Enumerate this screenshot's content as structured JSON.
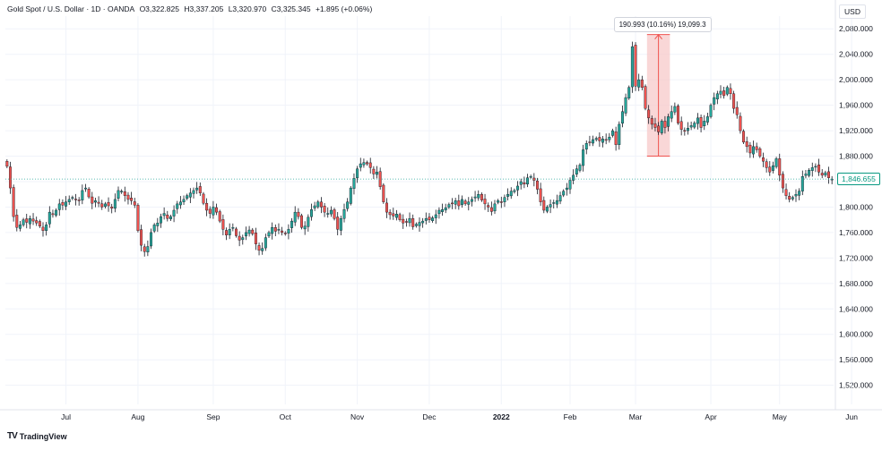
{
  "header": {
    "symbol": "Gold Spot / U.S. Dollar · 1D · OANDA",
    "open": "O3,322.825",
    "high": "H3,337.205",
    "low": "L3,320.970",
    "close": "C3,325.345",
    "change": "+1.895 (+0.06%)",
    "currency": "USD"
  },
  "measure": {
    "label": "190.993 (10.16%) 19,099.3"
  },
  "last_price": "1,846.655",
  "branding": {
    "logo_mark": "TV",
    "name": "TradingView"
  },
  "colors": {
    "up": "#26a69a",
    "down": "#ef5350",
    "measure_fill": "#f7c6c6",
    "measure_line": "#ef5350",
    "grid": "#f0f3fa"
  },
  "chart_data": {
    "type": "candlestick",
    "y_ticks": [
      "2,080.000",
      "2,040.000",
      "2,000.000",
      "1,960.000",
      "1,920.000",
      "1,880.000",
      "1,840.000",
      "1,800.000",
      "1,760.000",
      "1,720.000",
      "1,680.000",
      "1,640.000",
      "1,600.000",
      "1,560.000",
      "1,520.000"
    ],
    "y_tick_values": [
      2080,
      2040,
      2000,
      1960,
      1920,
      1880,
      1840,
      1800,
      1760,
      1720,
      1680,
      1640,
      1600,
      1560,
      1520
    ],
    "ylim": [
      1490,
      2100
    ],
    "x_labels": [
      {
        "label": "Jul",
        "day": 18
      },
      {
        "label": "Aug",
        "day": 40
      },
      {
        "label": "Sep",
        "day": 63
      },
      {
        "label": "Oct",
        "day": 85
      },
      {
        "label": "Nov",
        "day": 107
      },
      {
        "label": "Dec",
        "day": 129
      },
      {
        "label": "2022",
        "day": 151
      },
      {
        "label": "Feb",
        "day": 172
      },
      {
        "label": "Mar",
        "day": 192
      },
      {
        "label": "Apr",
        "day": 215
      },
      {
        "label": "May",
        "day": 236
      },
      {
        "label": "Jun",
        "day": 258
      }
    ],
    "series_closes": [
      1864,
      1830,
      1785,
      1768,
      1772,
      1780,
      1776,
      1782,
      1778,
      1775,
      1770,
      1763,
      1772,
      1792,
      1788,
      1795,
      1805,
      1803,
      1808,
      1812,
      1815,
      1812,
      1810,
      1826,
      1830,
      1816,
      1806,
      1810,
      1806,
      1800,
      1805,
      1802,
      1798,
      1812,
      1826,
      1825,
      1818,
      1812,
      1810,
      1803,
      1763,
      1740,
      1730,
      1738,
      1760,
      1772,
      1775,
      1785,
      1790,
      1782,
      1785,
      1795,
      1805,
      1808,
      1812,
      1818,
      1822,
      1826,
      1830,
      1822,
      1806,
      1795,
      1790,
      1800,
      1792,
      1778,
      1765,
      1756,
      1765,
      1768,
      1755,
      1748,
      1752,
      1760,
      1764,
      1758,
      1742,
      1732,
      1735,
      1752,
      1760,
      1768,
      1762,
      1765,
      1760,
      1758,
      1765,
      1778,
      1792,
      1785,
      1768,
      1770,
      1784,
      1796,
      1802,
      1808,
      1800,
      1792,
      1790,
      1795,
      1782,
      1765,
      1782,
      1796,
      1808,
      1830,
      1845,
      1860,
      1868,
      1870,
      1868,
      1862,
      1852,
      1855,
      1832,
      1808,
      1792,
      1788,
      1786,
      1789,
      1780,
      1775,
      1777,
      1782,
      1769,
      1773,
      1776,
      1778,
      1782,
      1780,
      1783,
      1788,
      1795,
      1796,
      1799,
      1804,
      1806,
      1810,
      1802,
      1812,
      1805,
      1808,
      1812,
      1816,
      1820,
      1811,
      1805,
      1800,
      1793,
      1805,
      1810,
      1808,
      1815,
      1820,
      1825,
      1826,
      1833,
      1840,
      1836,
      1846,
      1848,
      1842,
      1828,
      1808,
      1795,
      1800,
      1804,
      1807,
      1810,
      1818,
      1825,
      1830,
      1842,
      1850,
      1860,
      1866,
      1890,
      1900,
      1902,
      1906,
      1908,
      1904,
      1907,
      1905,
      1910,
      1920,
      1898,
      1930,
      1950,
      1972,
      1988,
      2052,
      1990,
      2000,
      1988,
      1955,
      1940,
      1930,
      1925,
      1918,
      1935,
      1925,
      1942,
      1950,
      1958,
      1932,
      1922,
      1920,
      1924,
      1928,
      1932,
      1940,
      1925,
      1935,
      1942,
      1960,
      1972,
      1978,
      1982,
      1975,
      1988,
      1978,
      1955,
      1945,
      1920,
      1902,
      1895,
      1885,
      1895,
      1890,
      1880,
      1872,
      1862,
      1855,
      1865,
      1876,
      1850,
      1830,
      1818,
      1812,
      1815,
      1820,
      1825,
      1848,
      1852,
      1858,
      1862,
      1864,
      1855,
      1850,
      1854,
      1846,
      1844
    ],
    "measure_range": {
      "low": 1880,
      "high": 2071,
      "start_day": 196,
      "end_day": 202
    }
  }
}
